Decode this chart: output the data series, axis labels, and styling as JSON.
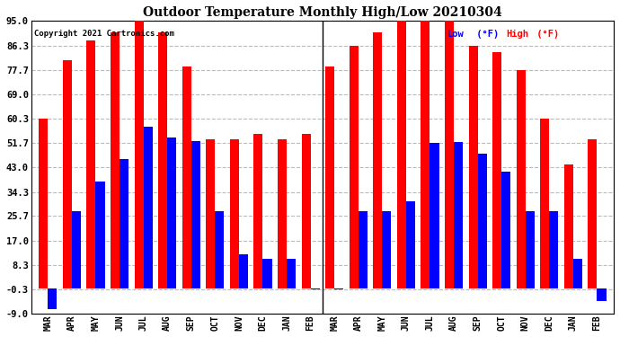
{
  "title": "Outdoor Temperature Monthly High/Low 20210304",
  "copyright": "Copyright 2021 Cartronics.com",
  "color_high": "#ff0000",
  "color_low": "#0000ff",
  "background_color": "#ffffff",
  "grid_color": "#bbbbbb",
  "months": [
    "MAR",
    "APR",
    "MAY",
    "JUN",
    "JUL",
    "AUG",
    "SEP",
    "OCT",
    "NOV",
    "DEC",
    "JAN",
    "FEB",
    "MAR",
    "APR",
    "MAY",
    "JUN",
    "JUL",
    "AUG",
    "SEP",
    "OCT",
    "NOV",
    "DEC",
    "JAN",
    "FEB"
  ],
  "highs": [
    60.3,
    81.0,
    88.0,
    91.0,
    95.0,
    91.0,
    79.0,
    53.0,
    53.0,
    55.0,
    53.0,
    55.0,
    79.0,
    86.3,
    91.0,
    95.0,
    95.0,
    95.0,
    86.3,
    84.0,
    77.7,
    60.3,
    44.0,
    53.0
  ],
  "lows": [
    -7.5,
    27.5,
    38.0,
    46.0,
    57.5,
    53.5,
    52.5,
    27.5,
    12.0,
    10.5,
    10.5,
    -0.5,
    -0.5,
    27.5,
    27.5,
    31.0,
    51.7,
    52.0,
    48.0,
    41.5,
    27.5,
    27.5,
    10.5,
    -4.5
  ],
  "ylim": [
    -9.0,
    95.0
  ],
  "yticks": [
    -9.0,
    -0.3,
    8.3,
    17.0,
    25.7,
    34.3,
    43.0,
    51.7,
    60.3,
    69.0,
    77.7,
    86.3,
    95.0
  ],
  "ytick_labels": [
    "-9.0",
    "-0.3",
    "8.3",
    "17.0",
    "25.7",
    "34.3",
    "43.0",
    "51.7",
    "60.3",
    "69.0",
    "77.7",
    "86.3",
    "95.0"
  ],
  "bar_width": 0.38,
  "figwidth": 6.9,
  "figheight": 3.75,
  "dpi": 100
}
